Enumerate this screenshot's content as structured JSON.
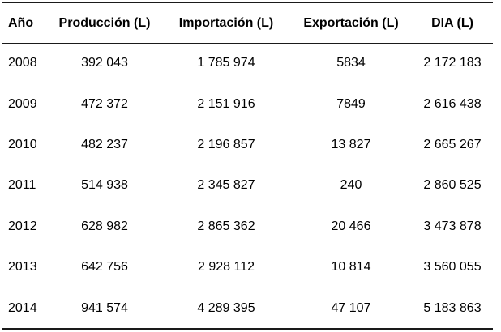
{
  "table": {
    "headers": [
      "Año",
      "Producción (L)",
      "Importación (L)",
      "Exportación (L)",
      "DIA (L)"
    ],
    "rows": [
      [
        "2008",
        "392 043",
        "1 785 974",
        "5834",
        "2 172 183"
      ],
      [
        "2009",
        "472 372",
        "2 151 916",
        "7849",
        "2 616 438"
      ],
      [
        "2010",
        "482 237",
        "2 196 857",
        "13 827",
        "2 665 267"
      ],
      [
        "2011",
        "514 938",
        "2 345 827",
        "240",
        "2 860 525"
      ],
      [
        "2012",
        "628 982",
        "2 865 362",
        "20 466",
        "3 473 878"
      ],
      [
        "2013",
        "642 756",
        "2 928 112",
        "10 814",
        "3 560 055"
      ],
      [
        "2014",
        "941 574",
        "4 289 395",
        "47 107",
        "5 183 863"
      ]
    ]
  }
}
